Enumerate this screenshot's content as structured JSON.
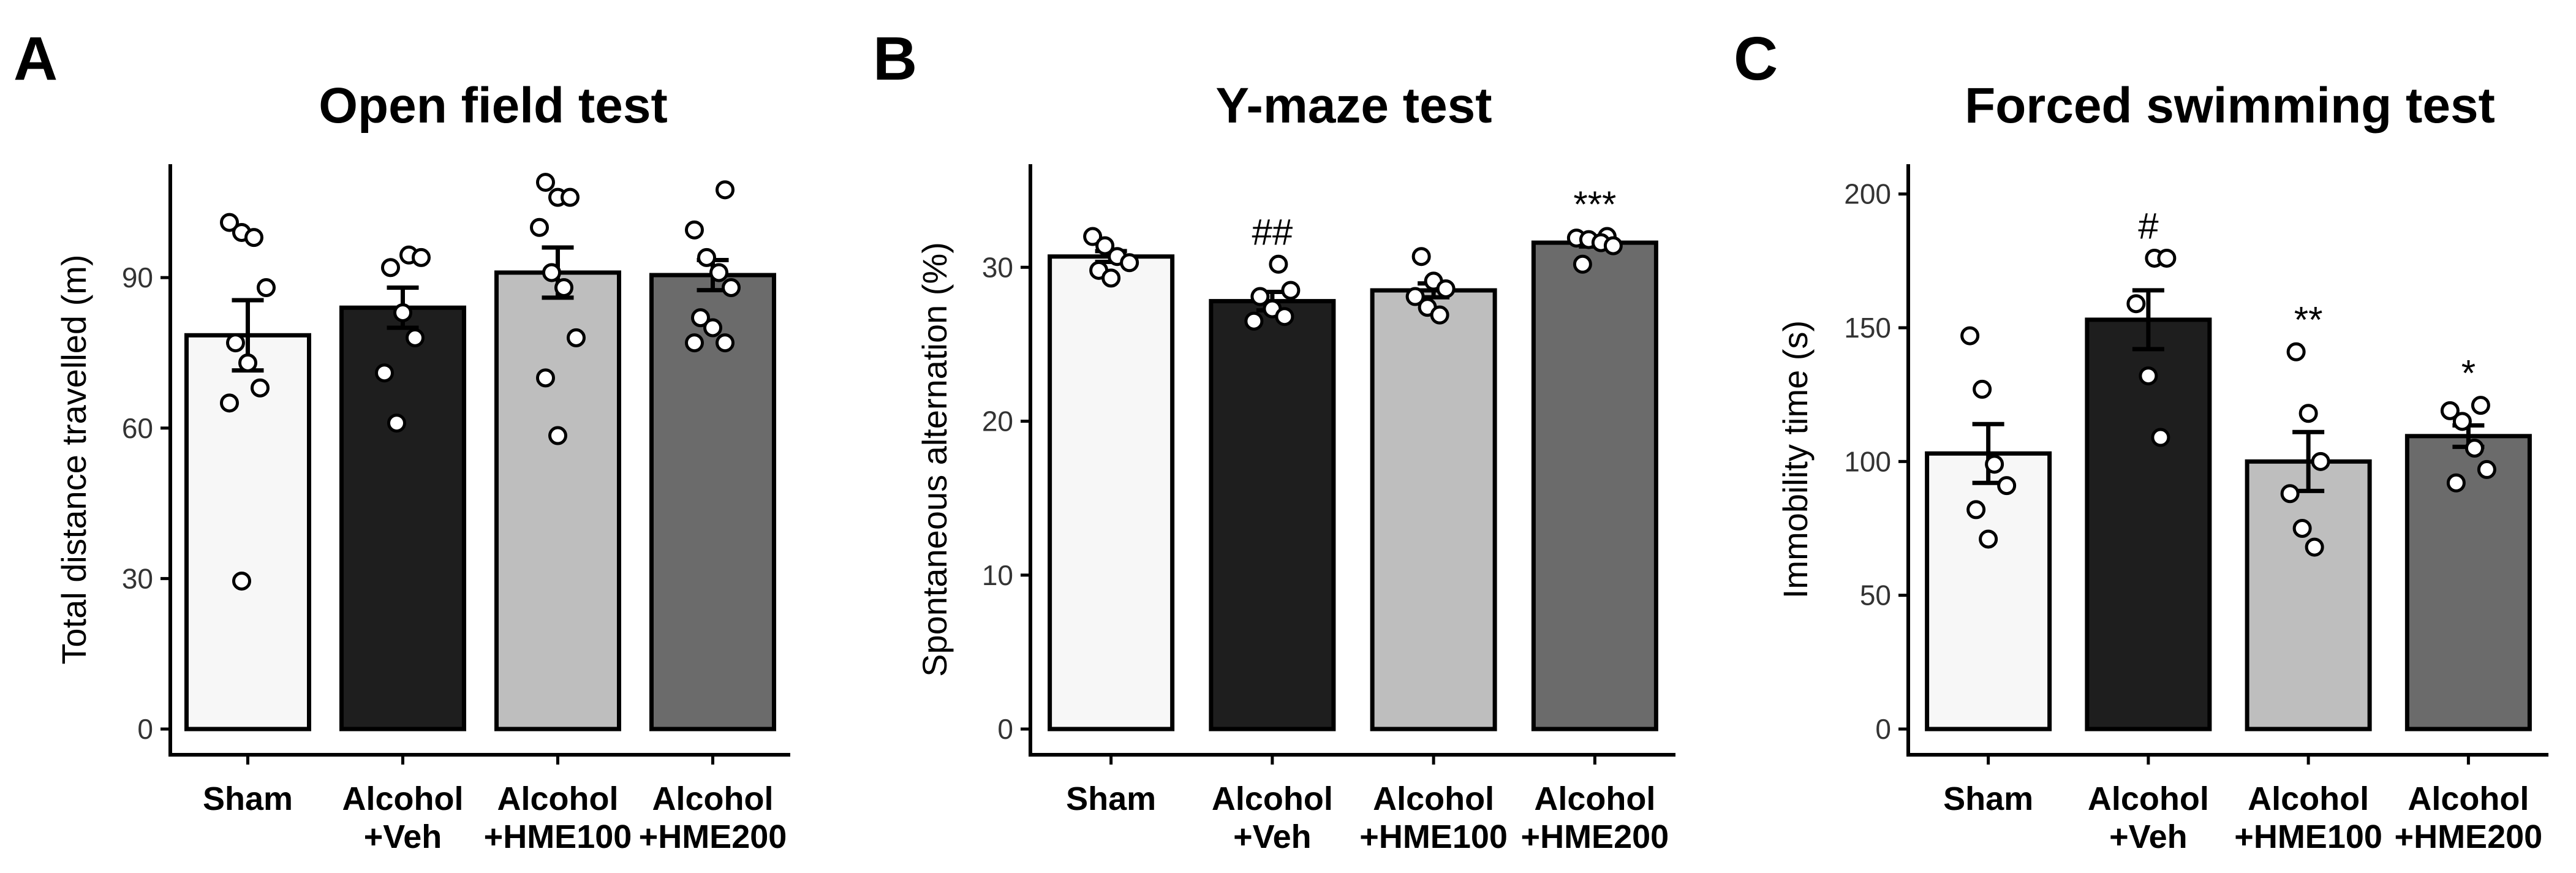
{
  "colors": {
    "Sham": "#f7f7f7",
    "Alcohol +Veh": "#1e1e1e",
    "Alcohol +HME100": "#bebebe",
    "Alcohol +HME200": "#6b6b6b"
  },
  "chart_data": [
    {
      "type": "bar",
      "panel": "A",
      "title": "Open field test",
      "xlabel": "",
      "ylabel": "Total distance travelled (m)",
      "ylim": [
        0,
        112
      ],
      "yticks": [
        0,
        30,
        60,
        90
      ],
      "categories": [
        {
          "line1": "Sham",
          "line2": ""
        },
        {
          "line1": "Alcohol",
          "line2": "+Veh"
        },
        {
          "line1": "Alcohol",
          "line2": "+HME100"
        },
        {
          "line1": "Alcohol",
          "line2": "+HME200"
        }
      ],
      "values": [
        78.5,
        84,
        91,
        90.5
      ],
      "sem": [
        7,
        4,
        5,
        3
      ],
      "significance": [
        "",
        "",
        "",
        ""
      ],
      "points": [
        [
          101,
          99,
          98,
          88,
          77,
          73,
          68,
          65,
          29.5
        ],
        [
          94.5,
          94,
          92,
          83,
          78,
          71,
          61
        ],
        [
          109,
          106,
          106,
          100,
          91,
          88,
          78,
          70,
          58.5
        ],
        [
          107.5,
          99.5,
          94,
          91,
          88,
          82,
          80,
          77,
          77
        ]
      ]
    },
    {
      "type": "bar",
      "panel": "B",
      "title": "Y-maze test",
      "xlabel": "",
      "ylabel": "Spontaneous alternation (%)",
      "ylim": [
        0,
        36.5
      ],
      "yticks": [
        0,
        10,
        20,
        30
      ],
      "categories": [
        {
          "line1": "Sham",
          "line2": ""
        },
        {
          "line1": "Alcohol",
          "line2": "+Veh"
        },
        {
          "line1": "Alcohol",
          "line2": "+HME100"
        },
        {
          "line1": "Alcohol",
          "line2": "+HME200"
        }
      ],
      "values": [
        30.7,
        27.8,
        28.5,
        31.6
      ],
      "sem": [
        0.35,
        0.6,
        0.45,
        0.25
      ],
      "significance": [
        "",
        "##",
        "",
        "***"
      ],
      "points": [
        [
          32.0,
          31.4,
          30.7,
          30.3,
          29.8,
          29.3
        ],
        [
          30.2,
          28.5,
          28.1,
          27.3,
          26.8,
          26.5
        ],
        [
          30.7,
          29.1,
          28.6,
          28.1,
          27.4,
          26.9
        ],
        [
          32.0,
          31.9,
          31.8,
          31.6,
          31.4,
          30.2
        ]
      ]
    },
    {
      "type": "bar",
      "panel": "C",
      "title": "Forced swimming test",
      "xlabel": "",
      "ylabel": "Immobility time (s)",
      "ylim": [
        0,
        210
      ],
      "yticks": [
        0,
        50,
        100,
        150,
        200
      ],
      "categories": [
        {
          "line1": "Sham",
          "line2": ""
        },
        {
          "line1": "Alcohol",
          "line2": "+Veh"
        },
        {
          "line1": "Alcohol",
          "line2": "+HME100"
        },
        {
          "line1": "Alcohol",
          "line2": "+HME200"
        }
      ],
      "values": [
        103,
        153,
        100,
        109.5
      ],
      "sem": [
        11,
        11,
        11,
        4
      ],
      "significance": [
        "",
        "#",
        "**",
        "*"
      ],
      "points": [
        [
          147,
          127,
          99,
          91,
          82,
          71
        ],
        [
          176,
          176,
          159,
          132,
          109
        ],
        [
          141,
          118,
          100,
          88,
          75,
          68
        ],
        [
          121,
          119,
          115,
          105,
          97,
          92
        ]
      ]
    }
  ]
}
